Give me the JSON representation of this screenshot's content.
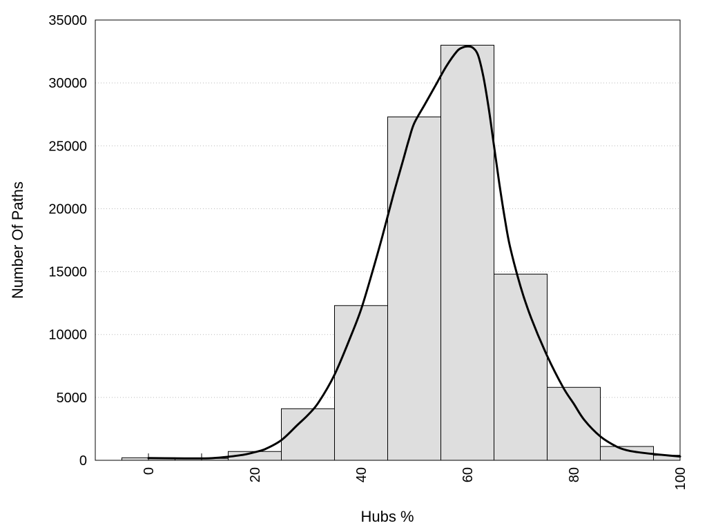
{
  "chart_data": {
    "type": "bar",
    "xlabel": "Hubs %",
    "ylabel": "Number Of Paths",
    "xlim": [
      -10,
      100
    ],
    "ylim": [
      0,
      35000
    ],
    "grid": true,
    "xticks": [
      0,
      20,
      40,
      60,
      80,
      100
    ],
    "yticks": [
      0,
      5000,
      10000,
      15000,
      20000,
      25000,
      30000,
      35000
    ],
    "bins": [
      {
        "x0": -5,
        "x1": 5,
        "value": 200
      },
      {
        "x0": 5,
        "x1": 15,
        "value": 150
      },
      {
        "x0": 15,
        "x1": 25,
        "value": 700
      },
      {
        "x0": 25,
        "x1": 35,
        "value": 4100
      },
      {
        "x0": 35,
        "x1": 45,
        "value": 12300
      },
      {
        "x0": 45,
        "x1": 55,
        "value": 27300
      },
      {
        "x0": 55,
        "x1": 65,
        "value": 33000
      },
      {
        "x0": 65,
        "x1": 75,
        "value": 14800
      },
      {
        "x0": 75,
        "x1": 85,
        "value": 5800
      },
      {
        "x0": 85,
        "x1": 95,
        "value": 1100
      },
      {
        "x0": 95,
        "x1": 100,
        "value": 400
      }
    ],
    "series": [
      {
        "type": "line",
        "x": [
          0,
          5,
          10,
          12,
          15,
          18,
          20,
          22,
          25,
          28,
          30,
          32,
          35,
          38,
          40,
          42,
          44,
          46,
          48,
          49,
          50,
          52,
          54,
          56,
          58,
          59,
          60,
          61,
          62,
          63,
          64,
          65,
          66,
          67,
          68,
          70,
          72,
          75,
          78,
          80,
          82,
          85,
          88,
          90,
          92,
          95,
          98,
          100
        ],
        "y": [
          180,
          160,
          150,
          170,
          280,
          450,
          650,
          900,
          1600,
          2800,
          3600,
          4600,
          6800,
          9800,
          12000,
          14800,
          17800,
          21000,
          24000,
          25500,
          26800,
          28300,
          29800,
          31300,
          32500,
          32800,
          32900,
          32800,
          32200,
          30500,
          28000,
          25000,
          22000,
          19300,
          17000,
          13800,
          11300,
          8300,
          5800,
          4500,
          3200,
          1900,
          1100,
          800,
          650,
          500,
          380,
          300
        ]
      }
    ]
  }
}
